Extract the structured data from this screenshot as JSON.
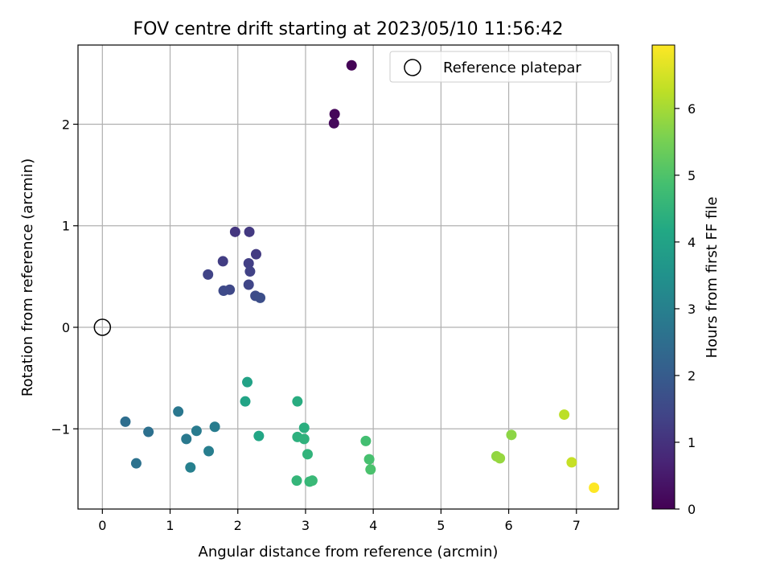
{
  "chart_data": {
    "type": "scatter",
    "title": "FOV centre drift starting at 2023/05/10 11:56:42",
    "xlabel": "Angular distance from reference (arcmin)",
    "ylabel": "Rotation from reference (arcmin)",
    "xlim": [
      -0.36,
      7.62
    ],
    "ylim": [
      -1.79,
      2.78
    ],
    "xticks": [
      "0",
      "1",
      "2",
      "3",
      "4",
      "5",
      "6",
      "7"
    ],
    "xtick_values": [
      0,
      1,
      2,
      3,
      4,
      5,
      6,
      7
    ],
    "yticks": [
      "−1",
      "0",
      "1",
      "2"
    ],
    "ytick_values": [
      -1,
      0,
      1,
      2
    ],
    "grid": true,
    "legend": {
      "placement": "upper right",
      "entries": [
        "Reference platepar"
      ]
    },
    "reference": {
      "name": "Reference platepar",
      "x": 0,
      "y": 0
    },
    "colorbar": {
      "label": "Hours from first FF file",
      "colormap": "viridis",
      "range": [
        0,
        6.95
      ],
      "ticks": [
        "0",
        "1",
        "2",
        "3",
        "4",
        "5",
        "6"
      ],
      "tick_values": [
        0,
        1,
        2,
        3,
        4,
        5,
        6
      ]
    },
    "points": [
      {
        "x": 3.68,
        "y": 2.58,
        "h": 0.05
      },
      {
        "x": 3.43,
        "y": 2.1,
        "h": 0.1
      },
      {
        "x": 3.42,
        "y": 2.01,
        "h": 0.15
      },
      {
        "x": 1.96,
        "y": 0.94,
        "h": 1.1
      },
      {
        "x": 2.17,
        "y": 0.94,
        "h": 1.15
      },
      {
        "x": 2.27,
        "y": 0.72,
        "h": 1.2
      },
      {
        "x": 1.78,
        "y": 0.65,
        "h": 1.25
      },
      {
        "x": 2.16,
        "y": 0.63,
        "h": 1.3
      },
      {
        "x": 2.18,
        "y": 0.55,
        "h": 1.35
      },
      {
        "x": 1.56,
        "y": 0.52,
        "h": 1.4
      },
      {
        "x": 2.16,
        "y": 0.42,
        "h": 1.45
      },
      {
        "x": 1.88,
        "y": 0.37,
        "h": 1.5
      },
      {
        "x": 1.79,
        "y": 0.36,
        "h": 1.55
      },
      {
        "x": 2.26,
        "y": 0.31,
        "h": 1.6
      },
      {
        "x": 2.33,
        "y": 0.29,
        "h": 1.65
      },
      {
        "x": 0.34,
        "y": -0.93,
        "h": 2.5
      },
      {
        "x": 0.68,
        "y": -1.03,
        "h": 2.55
      },
      {
        "x": 0.5,
        "y": -1.34,
        "h": 2.6
      },
      {
        "x": 1.12,
        "y": -0.83,
        "h": 2.75
      },
      {
        "x": 1.24,
        "y": -1.1,
        "h": 2.8
      },
      {
        "x": 1.39,
        "y": -1.02,
        "h": 2.85
      },
      {
        "x": 1.66,
        "y": -0.98,
        "h": 2.9
      },
      {
        "x": 1.57,
        "y": -1.22,
        "h": 2.95
      },
      {
        "x": 1.3,
        "y": -1.38,
        "h": 3.0
      },
      {
        "x": 2.14,
        "y": -0.54,
        "h": 4.0
      },
      {
        "x": 2.11,
        "y": -0.73,
        "h": 4.05
      },
      {
        "x": 2.31,
        "y": -1.07,
        "h": 4.1
      },
      {
        "x": 2.88,
        "y": -0.73,
        "h": 4.3
      },
      {
        "x": 2.98,
        "y": -0.99,
        "h": 4.35
      },
      {
        "x": 2.88,
        "y": -1.08,
        "h": 4.4
      },
      {
        "x": 2.98,
        "y": -1.1,
        "h": 4.45
      },
      {
        "x": 3.03,
        "y": -1.25,
        "h": 4.5
      },
      {
        "x": 2.87,
        "y": -1.51,
        "h": 4.55
      },
      {
        "x": 3.06,
        "y": -1.52,
        "h": 4.6
      },
      {
        "x": 3.1,
        "y": -1.51,
        "h": 4.65
      },
      {
        "x": 3.89,
        "y": -1.12,
        "h": 4.85
      },
      {
        "x": 3.94,
        "y": -1.3,
        "h": 4.9
      },
      {
        "x": 3.96,
        "y": -1.4,
        "h": 4.95
      },
      {
        "x": 6.04,
        "y": -1.06,
        "h": 5.75
      },
      {
        "x": 5.82,
        "y": -1.27,
        "h": 5.8
      },
      {
        "x": 5.87,
        "y": -1.29,
        "h": 5.85
      },
      {
        "x": 6.82,
        "y": -0.86,
        "h": 6.25
      },
      {
        "x": 6.93,
        "y": -1.33,
        "h": 6.35
      },
      {
        "x": 7.26,
        "y": -1.58,
        "h": 6.95
      }
    ]
  }
}
